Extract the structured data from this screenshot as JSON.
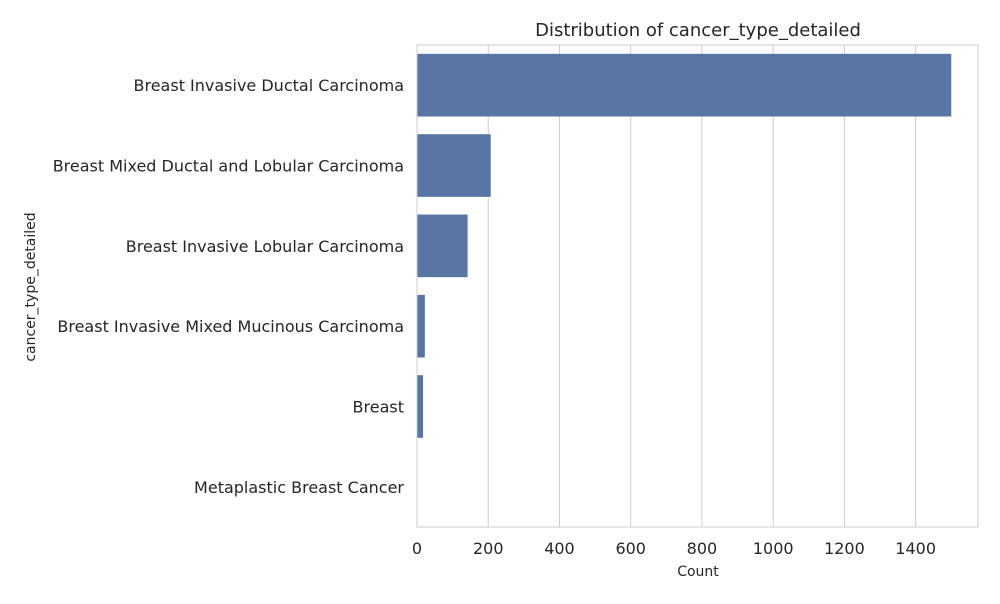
{
  "chart_data": {
    "type": "bar",
    "orientation": "horizontal",
    "title": "Distribution of cancer_type_detailed",
    "xlabel": "Count",
    "ylabel": "cancer_type_detailed",
    "categories": [
      "Breast Invasive Ductal Carcinoma",
      "Breast Mixed Ductal and Lobular Carcinoma",
      "Breast Invasive Lobular Carcinoma",
      "Breast Invasive Mixed Mucinous Carcinoma",
      "Breast",
      "Metaplastic Breast Cancer"
    ],
    "values": [
      1500,
      207,
      142,
      22,
      17,
      1
    ],
    "xlim": [
      0,
      1575
    ],
    "xticks": [
      "0",
      "200",
      "400",
      "600",
      "800",
      "1000",
      "1200",
      "1400"
    ],
    "xtick_values": [
      0,
      200,
      400,
      600,
      800,
      1000,
      1200,
      1400
    ],
    "grid": "vertical",
    "bar_color": "#5975a4",
    "grid_color": "#cccccc",
    "background_color": "#ffffff"
  }
}
